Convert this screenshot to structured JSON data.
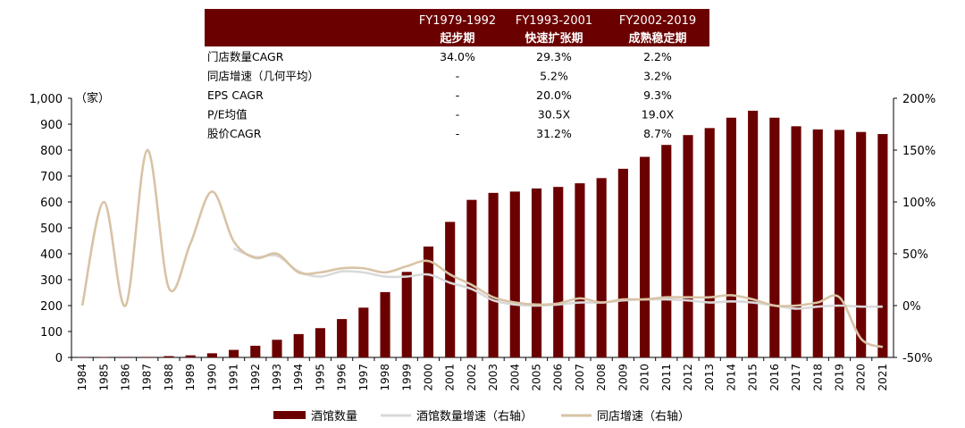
{
  "chart_data": {
    "type": "bar",
    "title": "",
    "left_axis_label": "（家）",
    "categories": [
      "1984",
      "1985",
      "1986",
      "1987",
      "1988",
      "1989",
      "1990",
      "1991",
      "1992",
      "1993",
      "1994",
      "1995",
      "1996",
      "1997",
      "1998",
      "1999",
      "2000",
      "2001",
      "2002",
      "2003",
      "2004",
      "2005",
      "2006",
      "2007",
      "2008",
      "2009",
      "2010",
      "2011",
      "2012",
      "2013",
      "2014",
      "2015",
      "2016",
      "2017",
      "2018",
      "2019",
      "2020",
      "2021"
    ],
    "ylim": [
      0,
      1000
    ],
    "y_ticks": [
      "0",
      "100",
      "200",
      "300",
      "400",
      "500",
      "600",
      "700",
      "800",
      "900",
      "1,000"
    ],
    "y2lim": [
      -50,
      200
    ],
    "y2_ticks": [
      "-50%",
      "0%",
      "50%",
      "100%",
      "150%",
      "200%"
    ],
    "colors": {
      "bar": "#6b0000",
      "store_growth": "#d9d9d9",
      "same_store": "#d8c3a5",
      "header_bg": "#6b0000"
    },
    "series": [
      {
        "name": "酒馆数量",
        "type": "bar",
        "axis": "left",
        "values": [
          1,
          1,
          2,
          2,
          5,
          8,
          16,
          29,
          45,
          68,
          90,
          113,
          148,
          192,
          252,
          330,
          428,
          523,
          608,
          635,
          640,
          652,
          658,
          672,
          692,
          728,
          774,
          820,
          858,
          885,
          925,
          952,
          925,
          892,
          880,
          878,
          870,
          862
        ]
      },
      {
        "name": "酒馆数量增速（右轴）",
        "type": "line",
        "axis": "right",
        "values": [
          null,
          null,
          null,
          null,
          null,
          null,
          null,
          55,
          47,
          48,
          33,
          28,
          33,
          32,
          28,
          28,
          30,
          22,
          16,
          5,
          1,
          0,
          1,
          3,
          3,
          5,
          6,
          6,
          5,
          3,
          4,
          3,
          0,
          -3,
          -1,
          0,
          -1,
          -1
        ]
      },
      {
        "name": "同店增速（右轴）",
        "type": "line",
        "axis": "right",
        "values": [
          0,
          100,
          0,
          150,
          17,
          60,
          110,
          62,
          46,
          50,
          32,
          32,
          36,
          36,
          32,
          38,
          43,
          30,
          20,
          8,
          3,
          1,
          2,
          7,
          3,
          6,
          6,
          8,
          8,
          8,
          10,
          6,
          0,
          0,
          3,
          8,
          -32,
          -40
        ]
      }
    ],
    "table": {
      "columns": [
        "",
        "FY1979-1992",
        "FY1993-2001",
        "FY2002-2019"
      ],
      "subcolumns": [
        "",
        "起步期",
        "快速扩张期",
        "成熟稳定期"
      ],
      "rows": [
        [
          "门店数量CAGR",
          "34.0%",
          "29.3%",
          "2.2%"
        ],
        [
          "同店增速（几何平均）",
          "-",
          "5.2%",
          "3.2%"
        ],
        [
          "EPS CAGR",
          "-",
          "20.0%",
          "9.3%"
        ],
        [
          "P/E均值",
          "-",
          "30.5X",
          "19.0X"
        ],
        [
          "股价CAGR",
          "-",
          "31.2%",
          "8.7%"
        ]
      ]
    },
    "legend": [
      "酒馆数量",
      "酒馆数量增速（右轴）",
      "同店增速（右轴）"
    ]
  }
}
